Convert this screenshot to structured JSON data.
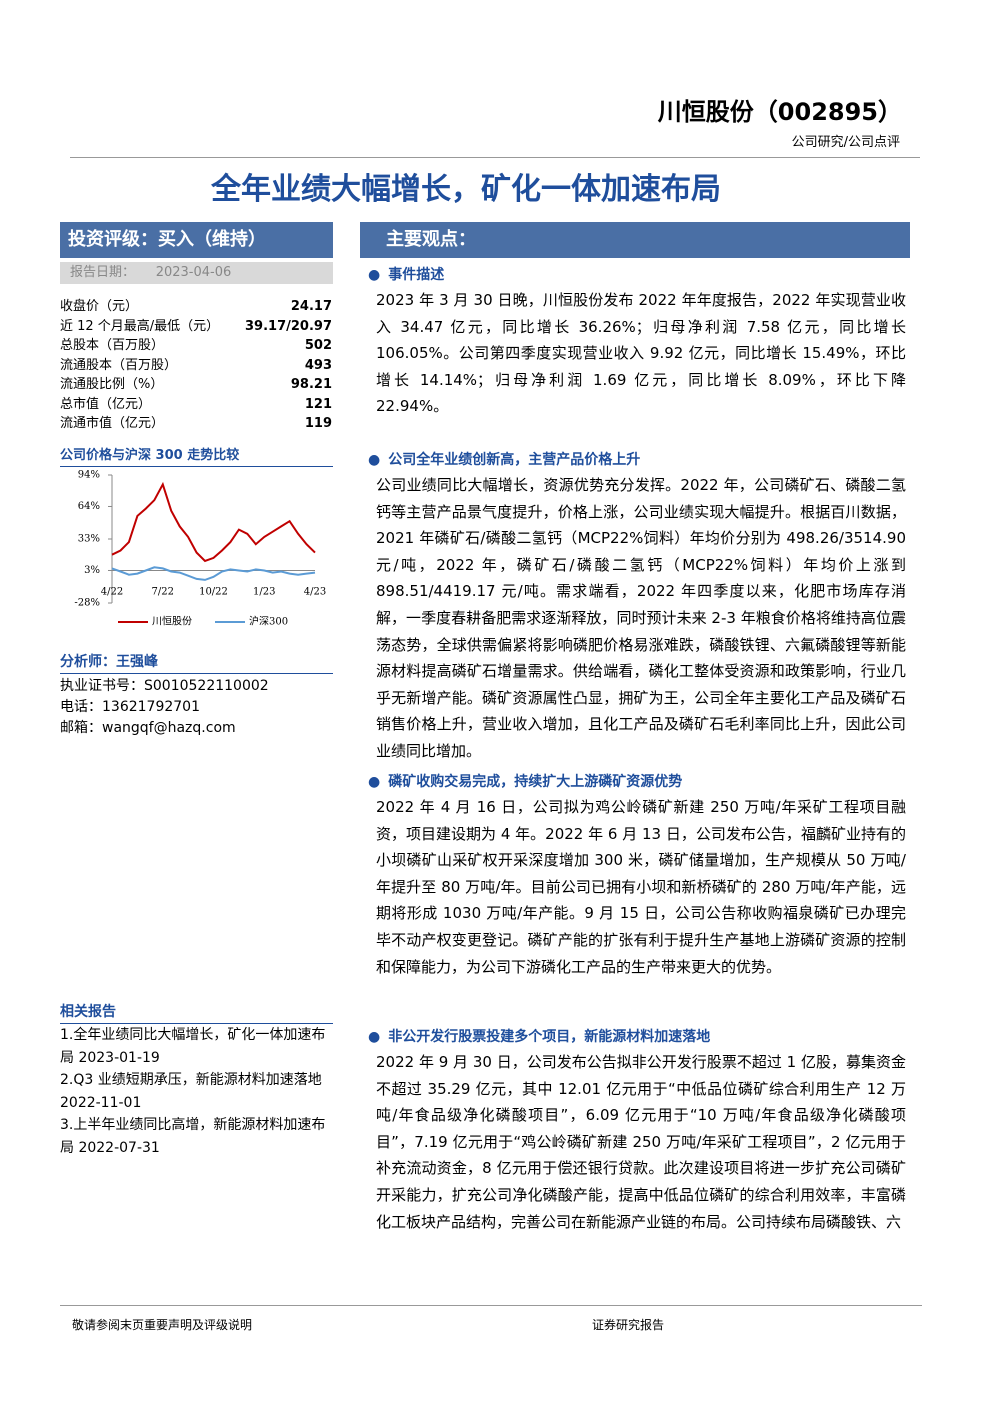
{
  "header": {
    "company": "川恒股份（002895）",
    "category": "公司研究/公司点评",
    "title": "全年业绩大幅增长，矿化一体加速布局"
  },
  "rating": {
    "label": "投资评级：买入（维持）",
    "date_label": "报告日期：",
    "date": "2023-04-06"
  },
  "stats": [
    {
      "label": "收盘价（元）",
      "value": "24.17"
    },
    {
      "label": "近 12 个月最高/最低（元）",
      "value": "39.17/20.97"
    },
    {
      "label": "总股本（百万股）",
      "value": "502"
    },
    {
      "label": "流通股本（百万股）",
      "value": "493"
    },
    {
      "label": "流通股比例（%）",
      "value": "98.21"
    },
    {
      "label": "总市值（亿元）",
      "value": "121"
    },
    {
      "label": "流通市值（亿元）",
      "value": "119"
    }
  ],
  "chart_data": {
    "type": "line",
    "title": "公司价格与沪深 300 走势比较",
    "categories": [
      "4/22",
      null,
      null,
      null,
      null,
      null,
      "7/22",
      null,
      null,
      null,
      null,
      null,
      "10/22",
      null,
      null,
      null,
      null,
      null,
      "1/23",
      null,
      null,
      null,
      null,
      null,
      "4/23"
    ],
    "series": [
      {
        "name": "川恒股份",
        "color": "#c00000",
        "values": [
          18,
          22,
          30,
          55,
          62,
          70,
          85,
          60,
          45,
          35,
          20,
          12,
          15,
          22,
          30,
          42,
          38,
          28,
          35,
          40,
          45,
          50,
          38,
          28,
          20
        ]
      },
      {
        "name": "沪深300",
        "color": "#5b9bd5",
        "values": [
          5,
          2,
          -1,
          0,
          3,
          6,
          5,
          2,
          1,
          -2,
          -5,
          -6,
          -3,
          2,
          4,
          3,
          2,
          4,
          3,
          1,
          2,
          0,
          -1,
          0,
          1
        ]
      }
    ],
    "ylim": [
      -28,
      94
    ],
    "yticks": [
      {
        "value": 94,
        "label": "94%"
      },
      {
        "value": 64,
        "label": "64%"
      },
      {
        "value": 33,
        "label": "33%"
      },
      {
        "value": 3,
        "label": "3%"
      },
      {
        "value": -28,
        "label": "-28%"
      }
    ]
  },
  "analyst": {
    "title": "分析师：王强峰",
    "lines": [
      "执业证书号：S0010522110002",
      "电话：13621792701",
      "邮箱：wangqf@hazq.com"
    ]
  },
  "related": {
    "title": "相关报告",
    "items": [
      "1.全年业绩同比大幅增长，矿化一体加速布局 2023-01-19",
      "2.Q3 业绩短期承压，新能源材料加速落地 2022-11-01",
      "3.上半年业绩同比高增，新能源材料加速布局 2022-07-31"
    ]
  },
  "main": {
    "title": "主要观点：",
    "sections": [
      {
        "heading": "事件描述",
        "paragraph": "2023 年 3 月 30 日晚，川恒股份发布 2022 年年度报告，2022 年实现营业收入 34.47 亿元，同比增长 36.26%；归母净利润 7.58 亿元，同比增长 106.05%。公司第四季度实现营业收入 9.92 亿元，同比增长 15.49%，环比增长 14.14%；归母净利润 1.69 亿元，同比增长 8.09%，环比下降 22.94%。"
      },
      {
        "heading": "公司全年业绩创新高，主营产品价格上升",
        "paragraph": "公司业绩同比大幅增长，资源优势充分发挥。2022 年，公司磷矿石、磷酸二氢钙等主营产品景气度提升，价格上涨，公司业绩实现大幅提升。根据百川数据，2021 年磷矿石/磷酸二氢钙（MCP22%饲料）年均价分别为 498.26/3514.90 元/吨，2022 年，磷矿石/磷酸二氢钙（MCP22%饲料）年均价上涨到 898.51/4419.17 元/吨。需求端看，2022 年四季度以来，化肥市场库存消解，一季度春耕备肥需求逐渐释放，同时预计未来 2-3 年粮食价格将维持高位震荡态势，全球供需偏紧将影响磷肥价格易涨难跌，磷酸铁锂、六氟磷酸锂等新能源材料提高磷矿石增量需求。供给端看，磷化工整体受资源和政策影响，行业几乎无新增产能。磷矿资源属性凸显，拥矿为王，公司全年主要化工产品及磷矿石销售价格上升，营业收入增加，且化工产品及磷矿石毛利率同比上升，因此公司业绩同比增加。"
      },
      {
        "heading": "磷矿收购交易完成，持续扩大上游磷矿资源优势",
        "paragraph": "2022 年 4 月 16 日，公司拟为鸡公岭磷矿新建 250 万吨/年采矿工程项目融资，项目建设期为 4 年。2022 年 6 月 13 日，公司发布公告，福麟矿业持有的小坝磷矿山采矿权开采深度增加 300 米，磷矿储量增加，生产规模从 50 万吨/年提升至 80 万吨/年。目前公司已拥有小坝和新桥磷矿的 280 万吨/年产能，远期将形成 1030 万吨/年产能。9 月 15 日，公司公告称收购福泉磷矿已办理完毕不动产权变更登记。磷矿产能的扩张有利于提升生产基地上游磷矿资源的控制和保障能力，为公司下游磷化工产品的生产带来更大的优势。"
      },
      {
        "heading": "非公开发行股票投建多个项目，新能源材料加速落地",
        "paragraph": "2022 年 9 月 30 日，公司发布公告拟非公开发行股票不超过 1 亿股，募集资金不超过 35.29 亿元，其中 12.01 亿元用于“中低品位磷矿综合利用生产 12 万吨/年食品级净化磷酸项目”，6.09 亿元用于“10 万吨/年食品级净化磷酸项目”，7.19 亿元用于“鸡公岭磷矿新建 250 万吨/年采矿工程项目”，2 亿元用于补充流动资金，8 亿元用于偿还银行贷款。此次建设项目将进一步扩充公司磷矿开采能力，扩充公司净化磷酸产能，提高中低品位磷矿的综合利用效率，丰富磷化工板块产品结构，完善公司在新能源产业链的布局。公司持续布局磷酸铁、六"
      }
    ]
  },
  "footer": {
    "left": "敬请参阅末页重要声明及评级说明",
    "right": "证券研究报告"
  }
}
